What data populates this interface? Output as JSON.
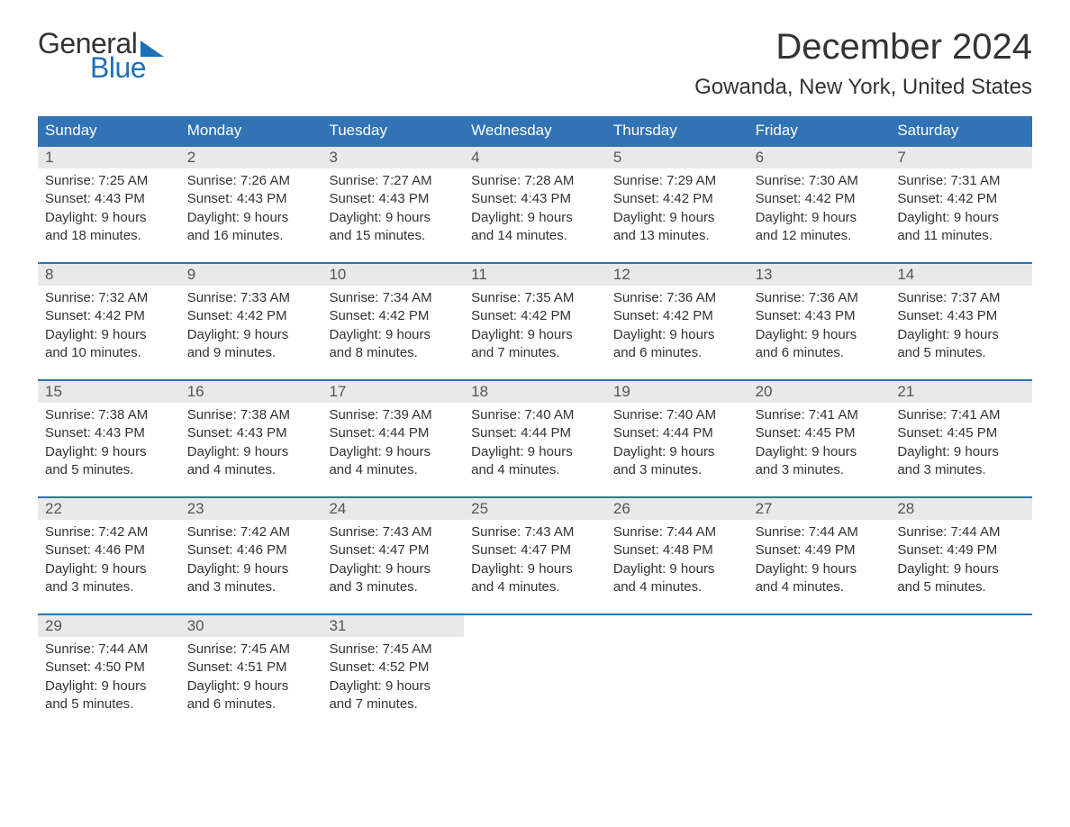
{
  "logo": {
    "general": "General",
    "blue": "Blue"
  },
  "header": {
    "month_title": "December 2024",
    "location": "Gowanda, New York, United States"
  },
  "style": {
    "brand_color": "#1d70b7",
    "header_band_color": "#3173b5",
    "header_text_color": "#ffffff",
    "daynum_bg": "#e9e9e9",
    "daynum_color": "#555555",
    "body_text_color": "#333333",
    "background": "#ffffff",
    "title_fontsize_pt": 30,
    "location_fontsize_pt": 18,
    "weekday_fontsize_pt": 13,
    "cell_fontsize_pt": 11
  },
  "calendar": {
    "weekdays": [
      "Sunday",
      "Monday",
      "Tuesday",
      "Wednesday",
      "Thursday",
      "Friday",
      "Saturday"
    ],
    "weeks": [
      [
        {
          "day": "1",
          "sunrise": "7:25 AM",
          "sunset": "4:43 PM",
          "daylight_l1": "Daylight: 9 hours",
          "daylight_l2": "and 18 minutes."
        },
        {
          "day": "2",
          "sunrise": "7:26 AM",
          "sunset": "4:43 PM",
          "daylight_l1": "Daylight: 9 hours",
          "daylight_l2": "and 16 minutes."
        },
        {
          "day": "3",
          "sunrise": "7:27 AM",
          "sunset": "4:43 PM",
          "daylight_l1": "Daylight: 9 hours",
          "daylight_l2": "and 15 minutes."
        },
        {
          "day": "4",
          "sunrise": "7:28 AM",
          "sunset": "4:43 PM",
          "daylight_l1": "Daylight: 9 hours",
          "daylight_l2": "and 14 minutes."
        },
        {
          "day": "5",
          "sunrise": "7:29 AM",
          "sunset": "4:42 PM",
          "daylight_l1": "Daylight: 9 hours",
          "daylight_l2": "and 13 minutes."
        },
        {
          "day": "6",
          "sunrise": "7:30 AM",
          "sunset": "4:42 PM",
          "daylight_l1": "Daylight: 9 hours",
          "daylight_l2": "and 12 minutes."
        },
        {
          "day": "7",
          "sunrise": "7:31 AM",
          "sunset": "4:42 PM",
          "daylight_l1": "Daylight: 9 hours",
          "daylight_l2": "and 11 minutes."
        }
      ],
      [
        {
          "day": "8",
          "sunrise": "7:32 AM",
          "sunset": "4:42 PM",
          "daylight_l1": "Daylight: 9 hours",
          "daylight_l2": "and 10 minutes."
        },
        {
          "day": "9",
          "sunrise": "7:33 AM",
          "sunset": "4:42 PM",
          "daylight_l1": "Daylight: 9 hours",
          "daylight_l2": "and 9 minutes."
        },
        {
          "day": "10",
          "sunrise": "7:34 AM",
          "sunset": "4:42 PM",
          "daylight_l1": "Daylight: 9 hours",
          "daylight_l2": "and 8 minutes."
        },
        {
          "day": "11",
          "sunrise": "7:35 AM",
          "sunset": "4:42 PM",
          "daylight_l1": "Daylight: 9 hours",
          "daylight_l2": "and 7 minutes."
        },
        {
          "day": "12",
          "sunrise": "7:36 AM",
          "sunset": "4:42 PM",
          "daylight_l1": "Daylight: 9 hours",
          "daylight_l2": "and 6 minutes."
        },
        {
          "day": "13",
          "sunrise": "7:36 AM",
          "sunset": "4:43 PM",
          "daylight_l1": "Daylight: 9 hours",
          "daylight_l2": "and 6 minutes."
        },
        {
          "day": "14",
          "sunrise": "7:37 AM",
          "sunset": "4:43 PM",
          "daylight_l1": "Daylight: 9 hours",
          "daylight_l2": "and 5 minutes."
        }
      ],
      [
        {
          "day": "15",
          "sunrise": "7:38 AM",
          "sunset": "4:43 PM",
          "daylight_l1": "Daylight: 9 hours",
          "daylight_l2": "and 5 minutes."
        },
        {
          "day": "16",
          "sunrise": "7:38 AM",
          "sunset": "4:43 PM",
          "daylight_l1": "Daylight: 9 hours",
          "daylight_l2": "and 4 minutes."
        },
        {
          "day": "17",
          "sunrise": "7:39 AM",
          "sunset": "4:44 PM",
          "daylight_l1": "Daylight: 9 hours",
          "daylight_l2": "and 4 minutes."
        },
        {
          "day": "18",
          "sunrise": "7:40 AM",
          "sunset": "4:44 PM",
          "daylight_l1": "Daylight: 9 hours",
          "daylight_l2": "and 4 minutes."
        },
        {
          "day": "19",
          "sunrise": "7:40 AM",
          "sunset": "4:44 PM",
          "daylight_l1": "Daylight: 9 hours",
          "daylight_l2": "and 3 minutes."
        },
        {
          "day": "20",
          "sunrise": "7:41 AM",
          "sunset": "4:45 PM",
          "daylight_l1": "Daylight: 9 hours",
          "daylight_l2": "and 3 minutes."
        },
        {
          "day": "21",
          "sunrise": "7:41 AM",
          "sunset": "4:45 PM",
          "daylight_l1": "Daylight: 9 hours",
          "daylight_l2": "and 3 minutes."
        }
      ],
      [
        {
          "day": "22",
          "sunrise": "7:42 AM",
          "sunset": "4:46 PM",
          "daylight_l1": "Daylight: 9 hours",
          "daylight_l2": "and 3 minutes."
        },
        {
          "day": "23",
          "sunrise": "7:42 AM",
          "sunset": "4:46 PM",
          "daylight_l1": "Daylight: 9 hours",
          "daylight_l2": "and 3 minutes."
        },
        {
          "day": "24",
          "sunrise": "7:43 AM",
          "sunset": "4:47 PM",
          "daylight_l1": "Daylight: 9 hours",
          "daylight_l2": "and 3 minutes."
        },
        {
          "day": "25",
          "sunrise": "7:43 AM",
          "sunset": "4:47 PM",
          "daylight_l1": "Daylight: 9 hours",
          "daylight_l2": "and 4 minutes."
        },
        {
          "day": "26",
          "sunrise": "7:44 AM",
          "sunset": "4:48 PM",
          "daylight_l1": "Daylight: 9 hours",
          "daylight_l2": "and 4 minutes."
        },
        {
          "day": "27",
          "sunrise": "7:44 AM",
          "sunset": "4:49 PM",
          "daylight_l1": "Daylight: 9 hours",
          "daylight_l2": "and 4 minutes."
        },
        {
          "day": "28",
          "sunrise": "7:44 AM",
          "sunset": "4:49 PM",
          "daylight_l1": "Daylight: 9 hours",
          "daylight_l2": "and 5 minutes."
        }
      ],
      [
        {
          "day": "29",
          "sunrise": "7:44 AM",
          "sunset": "4:50 PM",
          "daylight_l1": "Daylight: 9 hours",
          "daylight_l2": "and 5 minutes."
        },
        {
          "day": "30",
          "sunrise": "7:45 AM",
          "sunset": "4:51 PM",
          "daylight_l1": "Daylight: 9 hours",
          "daylight_l2": "and 6 minutes."
        },
        {
          "day": "31",
          "sunrise": "7:45 AM",
          "sunset": "4:52 PM",
          "daylight_l1": "Daylight: 9 hours",
          "daylight_l2": "and 7 minutes."
        },
        null,
        null,
        null,
        null
      ]
    ]
  },
  "labels": {
    "sunrise_prefix": "Sunrise: ",
    "sunset_prefix": "Sunset: "
  }
}
